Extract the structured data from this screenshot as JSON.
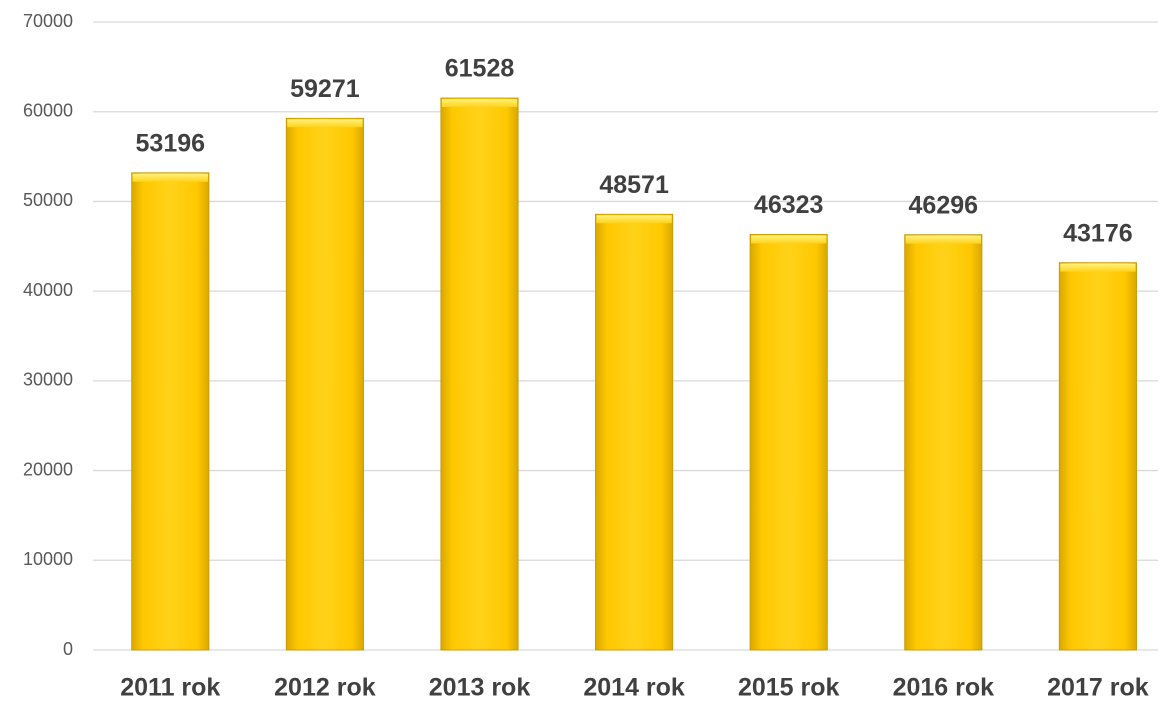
{
  "chart_data": {
    "type": "bar",
    "categories": [
      "2011 rok",
      "2012 rok",
      "2013 rok",
      "2014 rok",
      "2015 rok",
      "2016 rok",
      "2017 rok"
    ],
    "values": [
      53196,
      59271,
      61528,
      48571,
      46323,
      46296,
      43176
    ],
    "color": "#ffcc00",
    "ylim": [
      0,
      70000
    ],
    "yticks": [
      0,
      10000,
      20000,
      30000,
      40000,
      50000,
      60000,
      70000
    ],
    "grid": true
  }
}
